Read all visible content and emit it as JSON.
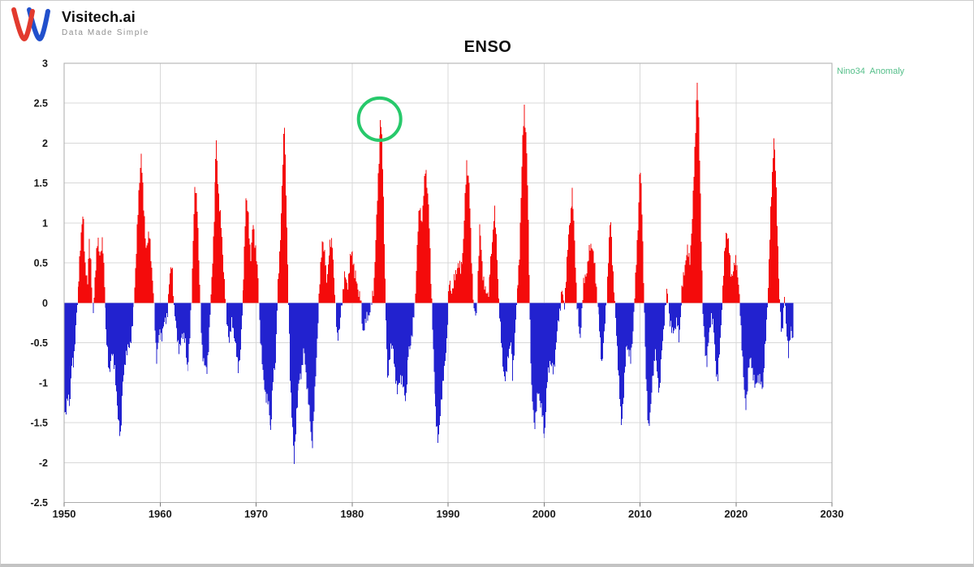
{
  "header": {
    "brand": "Visitech.ai",
    "tagline": "Data Made Simple"
  },
  "logo_colors": {
    "red": "#e23a2e",
    "blue": "#2150cc"
  },
  "legend": {
    "label": "Nino34  Anomaly",
    "color": "#55bf8a"
  },
  "chart_data": {
    "type": "bar",
    "title": "ENSO",
    "series_name": "Nino34 Anomaly",
    "xlabel": "",
    "ylabel": "",
    "x_range": [
      1950,
      2030
    ],
    "ylim": [
      -2.5,
      3
    ],
    "x_ticks": [
      1950,
      1960,
      1970,
      1980,
      1990,
      2000,
      2010,
      2020,
      2030
    ],
    "y_ticks": [
      3,
      2.5,
      2,
      1.5,
      1,
      0.5,
      0,
      -0.5,
      -1,
      -1.5,
      -2,
      -2.5
    ],
    "grid": true,
    "legend_position": "top-right",
    "positive_color": "#f40b0b",
    "negative_color": "#2222cf",
    "grid_color": "#d8d8d8",
    "border_color": "#ababab",
    "data_start": 1950,
    "data_end": 2026,
    "resolution": "monthly bars interpolated from keypoints [year, anomaly]",
    "annotation": {
      "shape": "circle",
      "year": 1982.87,
      "value": 2.3,
      "radius_px": 26,
      "stroke_px": 4,
      "color": "#27c96b"
    },
    "keypoints": [
      [
        1950.0,
        -1.35
      ],
      [
        1950.17,
        -1.45
      ],
      [
        1950.4,
        -1.1
      ],
      [
        1950.6,
        -1.3
      ],
      [
        1950.8,
        -0.75
      ],
      [
        1951.0,
        -0.7
      ],
      [
        1951.2,
        -0.35
      ],
      [
        1951.4,
        0.05
      ],
      [
        1951.6,
        0.5
      ],
      [
        1951.9,
        1.0
      ],
      [
        1952.0,
        1.2
      ],
      [
        1952.2,
        0.45
      ],
      [
        1952.45,
        0.2
      ],
      [
        1952.6,
        0.85
      ],
      [
        1952.8,
        0.45
      ],
      [
        1953.0,
        -0.2
      ],
      [
        1953.2,
        0.3
      ],
      [
        1953.5,
        0.8
      ],
      [
        1953.75,
        0.6
      ],
      [
        1954.0,
        0.75
      ],
      [
        1954.2,
        0.3
      ],
      [
        1954.4,
        -0.45
      ],
      [
        1954.7,
        -0.85
      ],
      [
        1955.0,
        -0.65
      ],
      [
        1955.3,
        -0.8
      ],
      [
        1955.6,
        -1.45
      ],
      [
        1955.9,
        -1.65
      ],
      [
        1956.1,
        -1.05
      ],
      [
        1956.4,
        -0.65
      ],
      [
        1956.8,
        -0.55
      ],
      [
        1957.1,
        -0.3
      ],
      [
        1957.3,
        0.0
      ],
      [
        1957.6,
        0.85
      ],
      [
        1957.9,
        1.6
      ],
      [
        1958.05,
        1.9
      ],
      [
        1958.3,
        1.15
      ],
      [
        1958.55,
        0.7
      ],
      [
        1958.9,
        0.85
      ],
      [
        1959.1,
        0.5
      ],
      [
        1959.35,
        0.0
      ],
      [
        1959.6,
        -0.7
      ],
      [
        1959.9,
        -0.4
      ],
      [
        1960.2,
        -0.4
      ],
      [
        1960.5,
        -0.25
      ],
      [
        1960.8,
        -0.1
      ],
      [
        1961.0,
        0.3
      ],
      [
        1961.25,
        0.55
      ],
      [
        1961.45,
        -0.1
      ],
      [
        1961.7,
        -0.3
      ],
      [
        1962.0,
        -0.65
      ],
      [
        1962.3,
        -0.35
      ],
      [
        1962.6,
        -0.5
      ],
      [
        1962.85,
        -0.85
      ],
      [
        1963.1,
        -0.5
      ],
      [
        1963.3,
        0.1
      ],
      [
        1963.5,
        1.0
      ],
      [
        1963.65,
        1.45
      ],
      [
        1963.9,
        1.2
      ],
      [
        1964.1,
        0.3
      ],
      [
        1964.35,
        -0.55
      ],
      [
        1964.6,
        -0.75
      ],
      [
        1964.85,
        -0.9
      ],
      [
        1965.1,
        -0.4
      ],
      [
        1965.35,
        0.2
      ],
      [
        1965.6,
        1.0
      ],
      [
        1965.85,
        2.05
      ],
      [
        1966.1,
        1.4
      ],
      [
        1966.4,
        0.9
      ],
      [
        1966.7,
        0.3
      ],
      [
        1966.95,
        -0.25
      ],
      [
        1967.2,
        -0.45
      ],
      [
        1967.5,
        -0.25
      ],
      [
        1967.8,
        -0.45
      ],
      [
        1968.1,
        -0.85
      ],
      [
        1968.4,
        -0.55
      ],
      [
        1968.65,
        0.15
      ],
      [
        1968.95,
        1.3
      ],
      [
        1969.2,
        1.1
      ],
      [
        1969.45,
        0.55
      ],
      [
        1969.7,
        1.0
      ],
      [
        1969.95,
        0.7
      ],
      [
        1970.2,
        0.3
      ],
      [
        1970.4,
        -0.3
      ],
      [
        1970.7,
        -0.9
      ],
      [
        1971.0,
        -1.15
      ],
      [
        1971.3,
        -1.3
      ],
      [
        1971.55,
        -1.6
      ],
      [
        1971.8,
        -0.95
      ],
      [
        1972.05,
        -0.7
      ],
      [
        1972.25,
        0.1
      ],
      [
        1972.5,
        0.7
      ],
      [
        1972.75,
        1.6
      ],
      [
        1972.95,
        2.28
      ],
      [
        1973.15,
        1.3
      ],
      [
        1973.35,
        0.1
      ],
      [
        1973.55,
        -0.95
      ],
      [
        1973.8,
        -1.6
      ],
      [
        1973.95,
        -2.05
      ],
      [
        1974.2,
        -1.35
      ],
      [
        1974.5,
        -1.0
      ],
      [
        1974.8,
        -0.8
      ],
      [
        1975.0,
        -0.6
      ],
      [
        1975.3,
        -1.0
      ],
      [
        1975.6,
        -1.45
      ],
      [
        1975.85,
        -1.8
      ],
      [
        1976.1,
        -1.2
      ],
      [
        1976.35,
        -0.5
      ],
      [
        1976.6,
        0.2
      ],
      [
        1976.9,
        0.85
      ],
      [
        1977.1,
        0.6
      ],
      [
        1977.4,
        0.3
      ],
      [
        1977.7,
        0.7
      ],
      [
        1977.95,
        0.8
      ],
      [
        1978.2,
        0.1
      ],
      [
        1978.45,
        -0.4
      ],
      [
        1978.7,
        -0.35
      ],
      [
        1979.0,
        0.1
      ],
      [
        1979.2,
        0.35
      ],
      [
        1979.5,
        0.2
      ],
      [
        1979.8,
        0.55
      ],
      [
        1980.05,
        0.65
      ],
      [
        1980.3,
        0.35
      ],
      [
        1980.6,
        0.2
      ],
      [
        1980.9,
        0.05
      ],
      [
        1981.1,
        -0.35
      ],
      [
        1981.4,
        -0.25
      ],
      [
        1981.7,
        -0.15
      ],
      [
        1982.0,
        -0.05
      ],
      [
        1982.25,
        0.2
      ],
      [
        1982.5,
        0.9
      ],
      [
        1982.75,
        1.7
      ],
      [
        1982.95,
        2.33
      ],
      [
        1983.15,
        2.0
      ],
      [
        1983.35,
        1.0
      ],
      [
        1983.5,
        0.0
      ],
      [
        1983.7,
        -1.0
      ],
      [
        1984.0,
        -0.55
      ],
      [
        1984.3,
        -0.6
      ],
      [
        1984.7,
        -1.15
      ],
      [
        1985.0,
        -0.9
      ],
      [
        1985.6,
        -1.2
      ],
      [
        1985.9,
        -0.6
      ],
      [
        1986.3,
        -0.4
      ],
      [
        1986.6,
        0.1
      ],
      [
        1986.85,
        0.85
      ],
      [
        1987.05,
        1.25
      ],
      [
        1987.3,
        1.0
      ],
      [
        1987.65,
        1.76
      ],
      [
        1988.0,
        1.1
      ],
      [
        1988.3,
        0.0
      ],
      [
        1988.5,
        -0.8
      ],
      [
        1988.7,
        -1.3
      ],
      [
        1989.0,
        -1.8
      ],
      [
        1989.3,
        -1.2
      ],
      [
        1989.6,
        -0.9
      ],
      [
        1989.9,
        -0.4
      ],
      [
        1990.1,
        0.25
      ],
      [
        1990.4,
        0.15
      ],
      [
        1990.7,
        0.3
      ],
      [
        1991.0,
        0.5
      ],
      [
        1991.3,
        0.4
      ],
      [
        1991.6,
        0.7
      ],
      [
        1991.95,
        1.77
      ],
      [
        1992.2,
        1.5
      ],
      [
        1992.45,
        0.6
      ],
      [
        1992.7,
        -0.1
      ],
      [
        1992.95,
        -0.2
      ],
      [
        1993.3,
        0.95
      ],
      [
        1993.6,
        0.4
      ],
      [
        1993.9,
        0.1
      ],
      [
        1994.2,
        0.15
      ],
      [
        1994.5,
        0.55
      ],
      [
        1994.85,
        1.2
      ],
      [
        1995.1,
        0.65
      ],
      [
        1995.35,
        -0.1
      ],
      [
        1995.6,
        -0.6
      ],
      [
        1995.8,
        -0.85
      ],
      [
        1996.0,
        -1.0
      ],
      [
        1996.3,
        -0.6
      ],
      [
        1996.55,
        -0.5
      ],
      [
        1996.7,
        -0.95
      ],
      [
        1997.0,
        -0.3
      ],
      [
        1997.2,
        0.1
      ],
      [
        1997.45,
        0.6
      ],
      [
        1997.65,
        1.4
      ],
      [
        1997.8,
        2.1
      ],
      [
        1997.95,
        2.48
      ],
      [
        1998.2,
        1.9
      ],
      [
        1998.4,
        0.9
      ],
      [
        1998.55,
        -0.3
      ],
      [
        1998.7,
        -1.1
      ],
      [
        1999.0,
        -1.55
      ],
      [
        1999.4,
        -1.1
      ],
      [
        1999.7,
        -1.3
      ],
      [
        2000.05,
        -1.7
      ],
      [
        2000.35,
        -1.0
      ],
      [
        2000.65,
        -0.7
      ],
      [
        2001.0,
        -0.9
      ],
      [
        2001.3,
        -0.45
      ],
      [
        2001.6,
        -0.15
      ],
      [
        2001.85,
        0.2
      ],
      [
        2002.1,
        -0.1
      ],
      [
        2002.35,
        0.5
      ],
      [
        2002.6,
        0.9
      ],
      [
        2002.95,
        1.4
      ],
      [
        2003.2,
        0.8
      ],
      [
        2003.45,
        0.0
      ],
      [
        2003.75,
        -0.5
      ],
      [
        2004.1,
        0.2
      ],
      [
        2004.5,
        0.45
      ],
      [
        2004.8,
        0.7
      ],
      [
        2005.0,
        0.75
      ],
      [
        2005.3,
        0.4
      ],
      [
        2005.6,
        0.0
      ],
      [
        2005.9,
        -0.55
      ],
      [
        2006.05,
        -0.75
      ],
      [
        2006.3,
        -0.4
      ],
      [
        2006.55,
        0.1
      ],
      [
        2006.8,
        0.8
      ],
      [
        2006.95,
        1.05
      ],
      [
        2007.15,
        0.5
      ],
      [
        2007.4,
        -0.1
      ],
      [
        2007.65,
        -0.6
      ],
      [
        2007.9,
        -1.25
      ],
      [
        2008.05,
        -1.55
      ],
      [
        2008.3,
        -1.1
      ],
      [
        2008.6,
        -0.5
      ],
      [
        2008.85,
        -0.6
      ],
      [
        2009.05,
        -0.75
      ],
      [
        2009.3,
        -0.3
      ],
      [
        2009.55,
        0.3
      ],
      [
        2009.8,
        1.0
      ],
      [
        2010.0,
        1.75
      ],
      [
        2010.2,
        1.2
      ],
      [
        2010.4,
        0.2
      ],
      [
        2010.6,
        -0.9
      ],
      [
        2010.85,
        -1.55
      ],
      [
        2011.1,
        -1.35
      ],
      [
        2011.35,
        -0.85
      ],
      [
        2011.6,
        -0.6
      ],
      [
        2011.85,
        -0.95
      ],
      [
        2012.05,
        -1.1
      ],
      [
        2012.3,
        -0.6
      ],
      [
        2012.6,
        -0.1
      ],
      [
        2012.85,
        0.15
      ],
      [
        2013.1,
        -0.2
      ],
      [
        2013.35,
        -0.4
      ],
      [
        2013.6,
        -0.3
      ],
      [
        2013.85,
        -0.25
      ],
      [
        2014.05,
        -0.45
      ],
      [
        2014.35,
        0.1
      ],
      [
        2014.65,
        0.45
      ],
      [
        2014.95,
        0.65
      ],
      [
        2015.2,
        0.55
      ],
      [
        2015.45,
        1.0
      ],
      [
        2015.7,
        1.9
      ],
      [
        2015.95,
        2.77
      ],
      [
        2016.15,
        2.2
      ],
      [
        2016.35,
        1.0
      ],
      [
        2016.55,
        -0.2
      ],
      [
        2016.8,
        -0.6
      ],
      [
        2016.95,
        -0.75
      ],
      [
        2017.2,
        -0.4
      ],
      [
        2017.45,
        -0.15
      ],
      [
        2017.7,
        -0.35
      ],
      [
        2017.95,
        -0.85
      ],
      [
        2018.1,
        -1.0
      ],
      [
        2018.35,
        -0.5
      ],
      [
        2018.6,
        0.1
      ],
      [
        2018.85,
        0.7
      ],
      [
        2019.0,
        0.95
      ],
      [
        2019.25,
        0.7
      ],
      [
        2019.5,
        0.35
      ],
      [
        2019.75,
        0.4
      ],
      [
        2019.95,
        0.55
      ],
      [
        2020.15,
        0.45
      ],
      [
        2020.4,
        0.0
      ],
      [
        2020.65,
        -0.55
      ],
      [
        2020.9,
        -1.2
      ],
      [
        2021.05,
        -1.3
      ],
      [
        2021.3,
        -0.85
      ],
      [
        2021.55,
        -0.7
      ],
      [
        2021.8,
        -0.9
      ],
      [
        2022.0,
        -1.1
      ],
      [
        2022.25,
        -0.9
      ],
      [
        2022.5,
        -1.0
      ],
      [
        2022.75,
        -1.05
      ],
      [
        2022.95,
        -0.8
      ],
      [
        2023.15,
        -0.4
      ],
      [
        2023.4,
        0.3
      ],
      [
        2023.65,
        1.2
      ],
      [
        2023.95,
        2.1
      ],
      [
        2024.15,
        1.6
      ],
      [
        2024.35,
        0.8
      ],
      [
        2024.55,
        0.0
      ],
      [
        2024.75,
        -0.45
      ],
      [
        2024.95,
        -0.1
      ],
      [
        2025.05,
        0.15
      ],
      [
        2025.2,
        -0.3
      ],
      [
        2025.45,
        -0.6
      ],
      [
        2025.7,
        -0.35
      ],
      [
        2025.95,
        -0.45
      ]
    ]
  }
}
